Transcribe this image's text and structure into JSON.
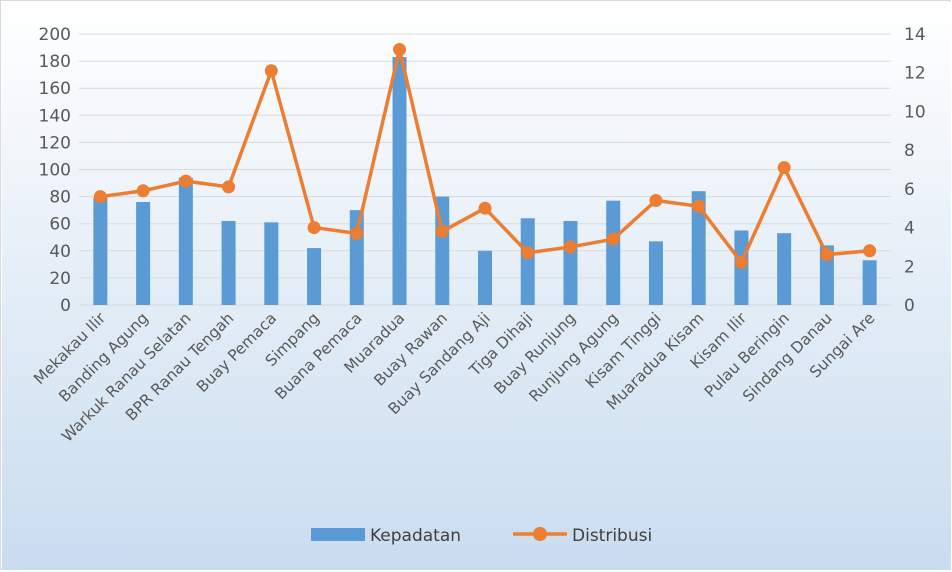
{
  "chart_data": {
    "type": "bar",
    "categories": [
      "Mekakau Ilir",
      "Banding Agung",
      "Warkuk Ranau Selatan",
      "BPR Ranau Tengah",
      "Buay Pemaca",
      "Simpang",
      "Buana Pemaca",
      "Muaradua",
      "Buay Rawan",
      "Buay Sandang Aji",
      "Tiga Dihaji",
      "Buay Runjung",
      "Runjung Agung",
      "Kisam Tinggi",
      "Muaradua Kisam",
      "Kisam Ilir",
      "Pulau Beringin",
      "Sindang Danau",
      "Sungai Are"
    ],
    "series": [
      {
        "name": "Kepadatan",
        "type": "bar",
        "axis": "left",
        "color": "#5b9bd5",
        "values": [
          79,
          76,
          94,
          62,
          61,
          42,
          70,
          183,
          80,
          40,
          64,
          62,
          77,
          47,
          84,
          55,
          53,
          44,
          33
        ]
      },
      {
        "name": "Distribusi",
        "type": "line",
        "axis": "right",
        "color": "#ed7d31",
        "values": [
          5.6,
          5.9,
          6.4,
          6.1,
          12.1,
          4.0,
          3.7,
          13.2,
          3.8,
          5.0,
          2.7,
          3.0,
          3.4,
          5.4,
          5.1,
          2.2,
          7.1,
          2.6,
          2.8
        ]
      }
    ],
    "ylim_left": [
      0,
      200
    ],
    "ylim_right": [
      0,
      14
    ],
    "yticks_left": [
      "0",
      "20",
      "40",
      "60",
      "80",
      "100",
      "120",
      "140",
      "160",
      "180",
      "200"
    ],
    "yticks_right": [
      "0",
      "2",
      "4",
      "6",
      "8",
      "10",
      "12",
      "14"
    ],
    "grid": true,
    "legend_position": "bottom",
    "colors": {
      "background_top": "#ffffff",
      "background_bottom": "#c9dcef",
      "grid": "#d9d9d9",
      "axis_text": "#595959"
    }
  }
}
